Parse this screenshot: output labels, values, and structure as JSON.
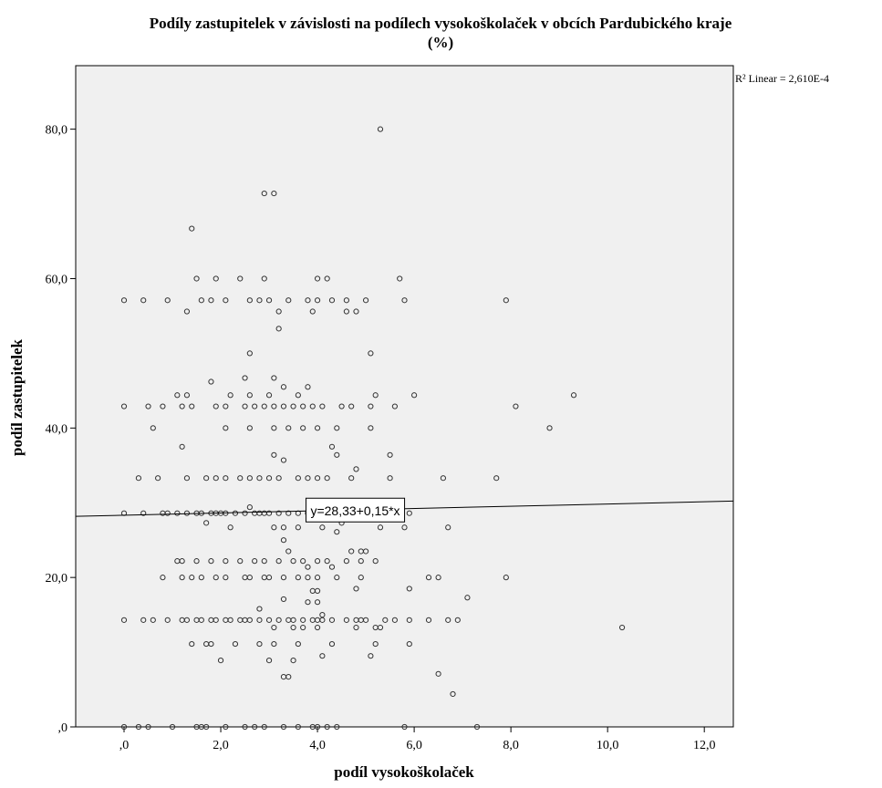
{
  "chart_data": {
    "type": "scatter",
    "title_line1": "Podíly zastupitelek v závislosti na podílech vysokoškolaček v obcích Pardubického kraje",
    "title_line2": "(%)",
    "xlabel": "podíl vysokoškolaček",
    "ylabel": "podíl zastupitelek",
    "xlim": [
      -1.0,
      12.6
    ],
    "ylim": [
      0,
      88.5
    ],
    "x_ticks": [
      {
        "value": 0,
        "label": ",0"
      },
      {
        "value": 2,
        "label": "2,0"
      },
      {
        "value": 4,
        "label": "4,0"
      },
      {
        "value": 6,
        "label": "6,0"
      },
      {
        "value": 8,
        "label": "8,0"
      },
      {
        "value": 10,
        "label": "10,0"
      },
      {
        "value": 12,
        "label": "12,0"
      }
    ],
    "y_ticks": [
      {
        "value": 0,
        "label": ",0"
      },
      {
        "value": 20,
        "label": "20,0"
      },
      {
        "value": 40,
        "label": "40,0"
      },
      {
        "value": 60,
        "label": "60,0"
      },
      {
        "value": 80,
        "label": "80,0"
      }
    ],
    "r2_label": "R² Linear = 2,610E-4",
    "fit_line": {
      "intercept": 28.33,
      "slope": 0.15,
      "label": "y=28,33+0,15*x",
      "label_x": 3.8
    },
    "grid": false,
    "legend": "none",
    "colors": {
      "plot_background": "#f0f0f0",
      "marker": "#333333",
      "line": "#000000"
    },
    "points": [
      [
        0.0,
        0
      ],
      [
        0.3,
        0
      ],
      [
        0.5,
        0
      ],
      [
        1.0,
        0
      ],
      [
        1.5,
        0
      ],
      [
        1.6,
        0
      ],
      [
        1.7,
        0
      ],
      [
        2.1,
        0
      ],
      [
        2.5,
        0
      ],
      [
        2.7,
        0
      ],
      [
        2.9,
        0
      ],
      [
        3.3,
        0
      ],
      [
        3.6,
        0
      ],
      [
        3.9,
        0
      ],
      [
        4.0,
        0
      ],
      [
        4.2,
        0
      ],
      [
        4.4,
        0
      ],
      [
        5.8,
        0
      ],
      [
        7.3,
        0
      ],
      [
        6.8,
        4.4
      ],
      [
        6.5,
        7.1
      ],
      [
        3.3,
        6.7
      ],
      [
        3.4,
        6.7
      ],
      [
        2.0,
        8.9
      ],
      [
        3.0,
        8.9
      ],
      [
        3.5,
        8.9
      ],
      [
        4.1,
        9.5
      ],
      [
        5.1,
        9.5
      ],
      [
        1.4,
        11.1
      ],
      [
        1.7,
        11.1
      ],
      [
        1.8,
        11.1
      ],
      [
        2.3,
        11.1
      ],
      [
        2.8,
        11.1
      ],
      [
        3.1,
        11.1
      ],
      [
        3.6,
        11.1
      ],
      [
        4.3,
        11.1
      ],
      [
        5.2,
        11.1
      ],
      [
        5.9,
        11.1
      ],
      [
        0.0,
        14.3
      ],
      [
        0.4,
        14.3
      ],
      [
        0.6,
        14.3
      ],
      [
        0.9,
        14.3
      ],
      [
        1.2,
        14.3
      ],
      [
        1.3,
        14.3
      ],
      [
        1.5,
        14.3
      ],
      [
        1.6,
        14.3
      ],
      [
        1.8,
        14.3
      ],
      [
        1.9,
        14.3
      ],
      [
        2.1,
        14.3
      ],
      [
        2.2,
        14.3
      ],
      [
        2.4,
        14.3
      ],
      [
        2.5,
        14.3
      ],
      [
        2.6,
        14.3
      ],
      [
        2.8,
        14.3
      ],
      [
        3.0,
        14.3
      ],
      [
        3.2,
        14.3
      ],
      [
        3.4,
        14.3
      ],
      [
        3.5,
        14.3
      ],
      [
        3.7,
        14.3
      ],
      [
        3.9,
        14.3
      ],
      [
        4.0,
        14.3
      ],
      [
        4.1,
        14.3
      ],
      [
        4.3,
        14.3
      ],
      [
        4.6,
        14.3
      ],
      [
        4.8,
        14.3
      ],
      [
        4.9,
        14.3
      ],
      [
        5.0,
        14.3
      ],
      [
        5.4,
        14.3
      ],
      [
        5.6,
        14.3
      ],
      [
        5.9,
        14.3
      ],
      [
        6.3,
        14.3
      ],
      [
        6.7,
        14.3
      ],
      [
        6.9,
        14.3
      ],
      [
        3.1,
        13.3
      ],
      [
        3.5,
        13.3
      ],
      [
        3.7,
        13.3
      ],
      [
        4.0,
        13.3
      ],
      [
        4.8,
        13.3
      ],
      [
        5.2,
        13.3
      ],
      [
        5.3,
        13.3
      ],
      [
        10.3,
        13.3
      ],
      [
        2.8,
        15.8
      ],
      [
        4.1,
        15.0
      ],
      [
        7.1,
        17.3
      ],
      [
        4.0,
        16.7
      ],
      [
        3.8,
        16.7
      ],
      [
        3.3,
        17.1
      ],
      [
        5.9,
        18.5
      ],
      [
        3.9,
        18.2
      ],
      [
        4.0,
        18.2
      ],
      [
        4.8,
        18.5
      ],
      [
        0.8,
        20
      ],
      [
        1.2,
        20
      ],
      [
        1.4,
        20
      ],
      [
        1.6,
        20
      ],
      [
        1.9,
        20
      ],
      [
        2.1,
        20
      ],
      [
        2.5,
        20
      ],
      [
        2.6,
        20
      ],
      [
        2.9,
        20
      ],
      [
        3.0,
        20
      ],
      [
        3.3,
        20
      ],
      [
        3.6,
        20
      ],
      [
        3.8,
        20
      ],
      [
        4.0,
        20
      ],
      [
        4.4,
        20
      ],
      [
        4.9,
        20
      ],
      [
        6.3,
        20
      ],
      [
        6.5,
        20
      ],
      [
        7.9,
        20
      ],
      [
        1.1,
        22.2
      ],
      [
        1.2,
        22.2
      ],
      [
        1.5,
        22.2
      ],
      [
        1.8,
        22.2
      ],
      [
        2.1,
        22.2
      ],
      [
        2.4,
        22.2
      ],
      [
        2.7,
        22.2
      ],
      [
        2.9,
        22.2
      ],
      [
        3.2,
        22.2
      ],
      [
        3.5,
        22.2
      ],
      [
        3.7,
        22.2
      ],
      [
        4.0,
        22.2
      ],
      [
        4.2,
        22.2
      ],
      [
        4.6,
        22.2
      ],
      [
        4.9,
        22.2
      ],
      [
        5.2,
        22.2
      ],
      [
        3.3,
        25.0
      ],
      [
        3.4,
        23.5
      ],
      [
        4.7,
        23.5
      ],
      [
        4.9,
        23.5
      ],
      [
        5.0,
        23.5
      ],
      [
        4.3,
        21.4
      ],
      [
        3.8,
        21.4
      ],
      [
        1.7,
        27.3
      ],
      [
        2.2,
        26.7
      ],
      [
        3.1,
        26.7
      ],
      [
        3.3,
        26.7
      ],
      [
        3.6,
        26.7
      ],
      [
        4.1,
        26.7
      ],
      [
        4.5,
        27.3
      ],
      [
        5.3,
        26.7
      ],
      [
        5.8,
        26.7
      ],
      [
        6.7,
        26.7
      ],
      [
        4.4,
        26.1
      ],
      [
        0.0,
        28.6
      ],
      [
        0.4,
        28.6
      ],
      [
        0.8,
        28.6
      ],
      [
        0.9,
        28.6
      ],
      [
        1.1,
        28.6
      ],
      [
        1.3,
        28.6
      ],
      [
        1.5,
        28.6
      ],
      [
        1.6,
        28.6
      ],
      [
        1.8,
        28.6
      ],
      [
        1.9,
        28.6
      ],
      [
        2.0,
        28.6
      ],
      [
        2.1,
        28.6
      ],
      [
        2.3,
        28.6
      ],
      [
        2.5,
        28.6
      ],
      [
        2.7,
        28.6
      ],
      [
        2.8,
        28.6
      ],
      [
        2.9,
        28.6
      ],
      [
        3.0,
        28.6
      ],
      [
        3.2,
        28.6
      ],
      [
        3.4,
        28.6
      ],
      [
        3.6,
        28.6
      ],
      [
        3.8,
        28.6
      ],
      [
        4.0,
        28.6
      ],
      [
        4.2,
        28.6
      ],
      [
        4.4,
        28.6
      ],
      [
        4.6,
        28.6
      ],
      [
        5.9,
        28.6
      ],
      [
        2.6,
        29.4
      ],
      [
        4.3,
        30.0
      ],
      [
        0.3,
        33.3
      ],
      [
        0.7,
        33.3
      ],
      [
        1.3,
        33.3
      ],
      [
        1.7,
        33.3
      ],
      [
        1.9,
        33.3
      ],
      [
        2.1,
        33.3
      ],
      [
        2.4,
        33.3
      ],
      [
        2.6,
        33.3
      ],
      [
        2.8,
        33.3
      ],
      [
        3.0,
        33.3
      ],
      [
        3.2,
        33.3
      ],
      [
        3.6,
        33.3
      ],
      [
        3.8,
        33.3
      ],
      [
        4.0,
        33.3
      ],
      [
        4.2,
        33.3
      ],
      [
        4.7,
        33.3
      ],
      [
        5.5,
        33.3
      ],
      [
        6.6,
        33.3
      ],
      [
        7.7,
        33.3
      ],
      [
        4.8,
        34.5
      ],
      [
        3.3,
        35.7
      ],
      [
        5.5,
        36.4
      ],
      [
        3.1,
        36.4
      ],
      [
        4.4,
        36.4
      ],
      [
        4.3,
        37.5
      ],
      [
        1.2,
        37.5
      ],
      [
        0.6,
        40
      ],
      [
        2.1,
        40
      ],
      [
        2.6,
        40
      ],
      [
        3.1,
        40
      ],
      [
        3.4,
        40
      ],
      [
        3.7,
        40
      ],
      [
        4.0,
        40
      ],
      [
        4.4,
        40
      ],
      [
        5.1,
        40
      ],
      [
        8.8,
        40
      ],
      [
        0.0,
        42.9
      ],
      [
        0.5,
        42.9
      ],
      [
        0.8,
        42.9
      ],
      [
        1.2,
        42.9
      ],
      [
        1.4,
        42.9
      ],
      [
        1.9,
        42.9
      ],
      [
        2.1,
        42.9
      ],
      [
        2.5,
        42.9
      ],
      [
        2.7,
        42.9
      ],
      [
        2.9,
        42.9
      ],
      [
        3.1,
        42.9
      ],
      [
        3.3,
        42.9
      ],
      [
        3.5,
        42.9
      ],
      [
        3.7,
        42.9
      ],
      [
        3.9,
        42.9
      ],
      [
        4.1,
        42.9
      ],
      [
        4.5,
        42.9
      ],
      [
        4.7,
        42.9
      ],
      [
        5.1,
        42.9
      ],
      [
        5.6,
        42.9
      ],
      [
        8.1,
        42.9
      ],
      [
        1.1,
        44.4
      ],
      [
        1.3,
        44.4
      ],
      [
        2.2,
        44.4
      ],
      [
        2.6,
        44.4
      ],
      [
        3.0,
        44.4
      ],
      [
        3.6,
        44.4
      ],
      [
        5.2,
        44.4
      ],
      [
        6.0,
        44.4
      ],
      [
        9.3,
        44.4
      ],
      [
        1.8,
        46.2
      ],
      [
        2.5,
        46.7
      ],
      [
        3.1,
        46.7
      ],
      [
        3.3,
        45.5
      ],
      [
        3.8,
        45.5
      ],
      [
        2.6,
        50.0
      ],
      [
        5.1,
        50.0
      ],
      [
        3.2,
        53.3
      ],
      [
        1.3,
        55.6
      ],
      [
        3.2,
        55.6
      ],
      [
        3.9,
        55.6
      ],
      [
        4.6,
        55.6
      ],
      [
        4.8,
        55.6
      ],
      [
        0.0,
        57.1
      ],
      [
        0.4,
        57.1
      ],
      [
        0.9,
        57.1
      ],
      [
        1.6,
        57.1
      ],
      [
        1.8,
        57.1
      ],
      [
        2.1,
        57.1
      ],
      [
        2.6,
        57.1
      ],
      [
        2.8,
        57.1
      ],
      [
        3.0,
        57.1
      ],
      [
        3.4,
        57.1
      ],
      [
        3.8,
        57.1
      ],
      [
        4.0,
        57.1
      ],
      [
        4.3,
        57.1
      ],
      [
        4.6,
        57.1
      ],
      [
        5.0,
        57.1
      ],
      [
        5.8,
        57.1
      ],
      [
        7.9,
        57.1
      ],
      [
        1.5,
        60
      ],
      [
        1.9,
        60
      ],
      [
        2.4,
        60
      ],
      [
        2.9,
        60
      ],
      [
        4.0,
        60
      ],
      [
        4.2,
        60
      ],
      [
        5.7,
        60
      ],
      [
        1.4,
        66.7
      ],
      [
        2.9,
        71.4
      ],
      [
        3.1,
        71.4
      ],
      [
        5.3,
        80.0
      ]
    ]
  }
}
